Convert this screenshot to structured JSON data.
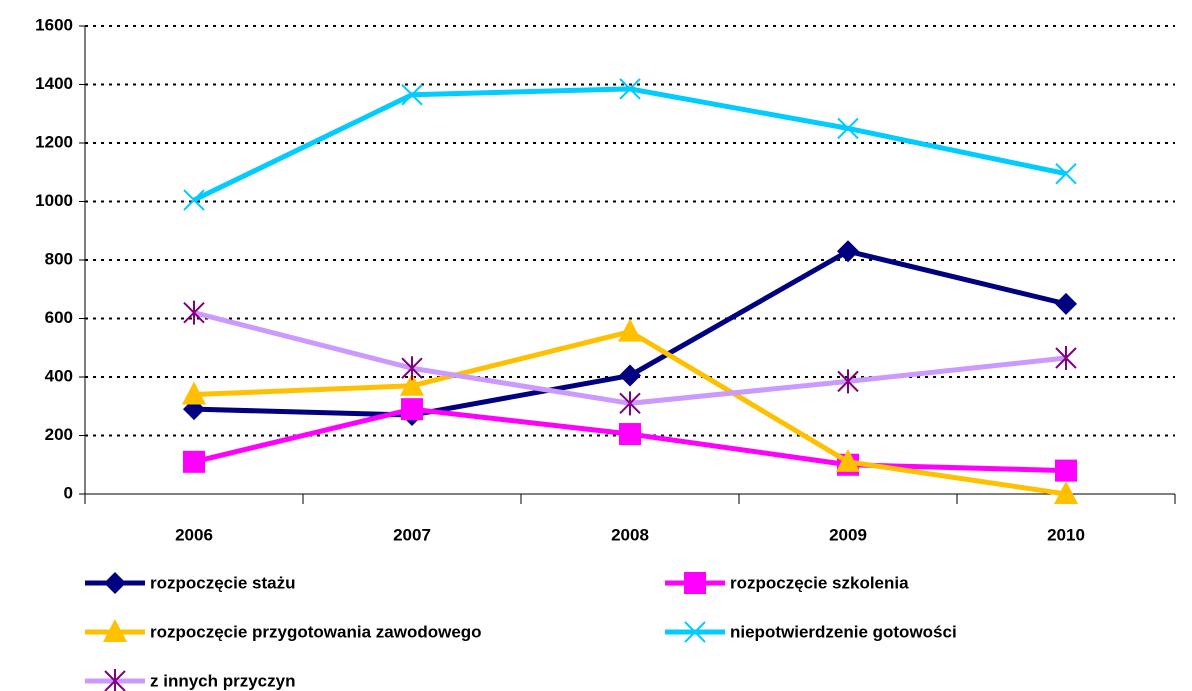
{
  "chart_data": {
    "type": "line",
    "categories": [
      "2006",
      "2007",
      "2008",
      "2009",
      "2010"
    ],
    "series": [
      {
        "name": "rozpoczęcie stażu",
        "color": "#000080",
        "marker": "diamond",
        "values": [
          290,
          270,
          405,
          830,
          650
        ]
      },
      {
        "name": "rozpoczęcie szkolenia",
        "color": "#ff00ff",
        "marker": "square",
        "values": [
          110,
          290,
          205,
          100,
          80
        ]
      },
      {
        "name": "rozpoczęcie przygotowania zawodowego",
        "color": "#ffc000",
        "marker": "triangle",
        "values": [
          340,
          370,
          555,
          110,
          0
        ]
      },
      {
        "name": "niepotwierdzenie gotowości",
        "color": "#00ccff",
        "marker": "x",
        "values": [
          1005,
          1365,
          1385,
          1250,
          1095
        ]
      },
      {
        "name": "z innych przyczyn",
        "color": "#cc99ff",
        "markerColor": "#800080",
        "marker": "asterisk",
        "values": [
          620,
          430,
          310,
          385,
          465
        ]
      }
    ],
    "ylim": [
      0,
      1600
    ],
    "yticks": [
      0,
      200,
      400,
      600,
      800,
      1000,
      1200,
      1400,
      1600
    ],
    "grid": true,
    "legend": "bottom"
  }
}
